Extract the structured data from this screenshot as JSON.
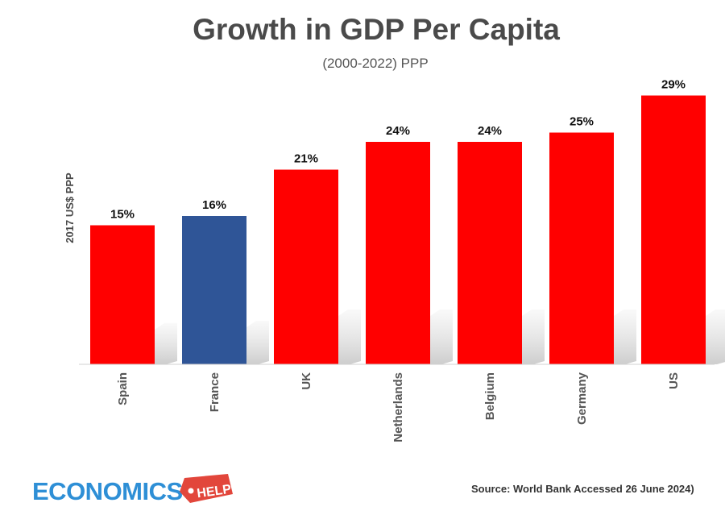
{
  "chart_data": {
    "type": "bar",
    "title": "Growth in GDP Per Capita",
    "subtitle": "(2000-2022) PPP",
    "ylabel": "2017 US$ PPP",
    "xlabel": "",
    "categories": [
      "Spain",
      "France",
      "UK",
      "Netherlands",
      "Belgium",
      "Germany",
      "US"
    ],
    "values": [
      15,
      16,
      21,
      24,
      24,
      25,
      29
    ],
    "value_labels": [
      "15%",
      "16%",
      "21%",
      "24%",
      "24%",
      "25%",
      "29%"
    ],
    "colors": [
      "#ff0000",
      "#2f5597",
      "#ff0000",
      "#ff0000",
      "#ff0000",
      "#ff0000",
      "#ff0000"
    ],
    "ylim": [
      0,
      30
    ],
    "grid": false,
    "legend": "none"
  },
  "branding": {
    "logo_word": "ECONOMICS",
    "logo_tag": "HELP",
    "logo_color": "#2e8fd6",
    "tag_color": "#e2463b"
  },
  "source": "Source: World Bank  Accessed 26 June 2024)"
}
